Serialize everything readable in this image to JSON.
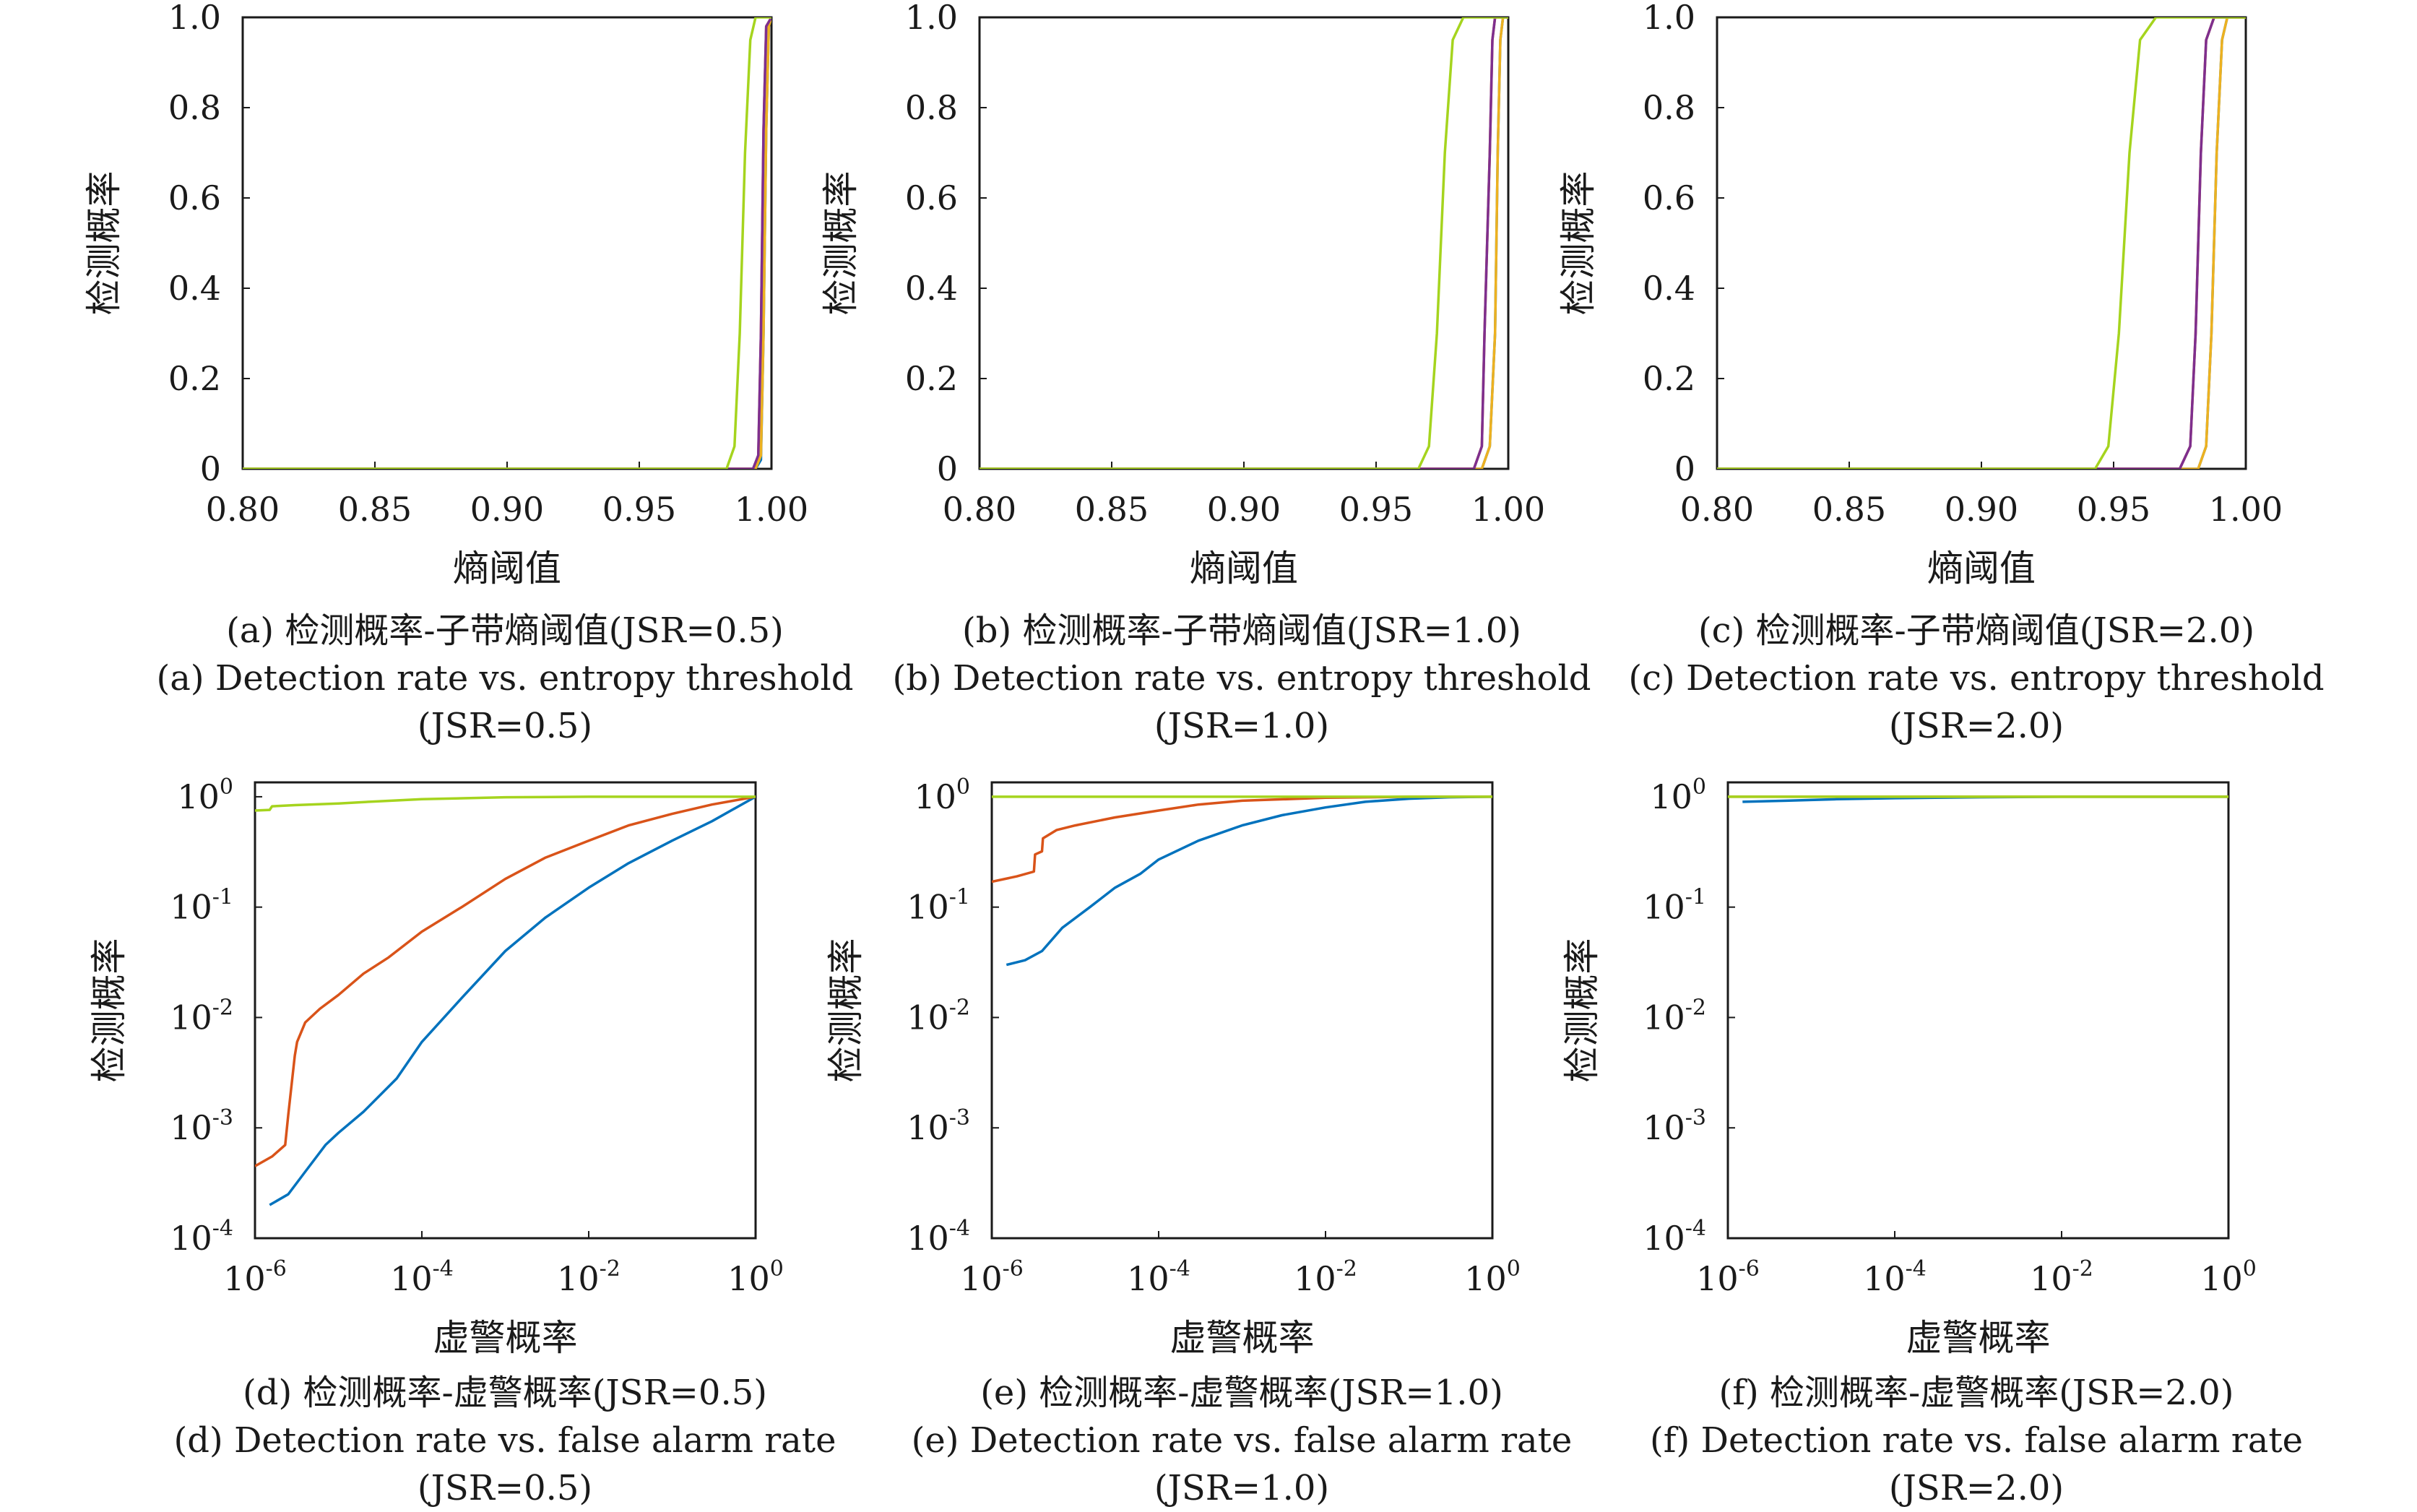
{
  "colors": {
    "series_1": "#0072bd",
    "series_2": "#d95319",
    "series_3": "#edb120",
    "series_4": "#7e2f8e",
    "series_5": "#a5d41e"
  },
  "panels": [
    {
      "caption_cn": "(a) 检测概率-子带熵阈值(JSR=0.5)",
      "caption_en": "(a) Detection rate vs. entropy threshold",
      "caption_jsr": "(JSR=0.5)"
    },
    {
      "caption_cn": "(b) 检测概率-子带熵阈值(JSR=1.0)",
      "caption_en": "(b) Detection rate vs. entropy threshold",
      "caption_jsr": "(JSR=1.0)"
    },
    {
      "caption_cn": "(c) 检测概率-子带熵阈值(JSR=2.0)",
      "caption_en": "(c) Detection rate vs. entropy threshold",
      "caption_jsr": "(JSR=2.0)"
    },
    {
      "caption_cn": "(d) 检测概率-虚警概率(JSR=0.5)",
      "caption_en": "(d) Detection rate vs. false alarm rate",
      "caption_jsr": "(JSR=0.5)"
    },
    {
      "caption_cn": "(e) 检测概率-虚警概率(JSR=1.0)",
      "caption_en": "(e) Detection rate vs. false alarm rate",
      "caption_jsr": "(JSR=1.0)"
    },
    {
      "caption_cn": "(f) 检测概率-虚警概率(JSR=2.0)",
      "caption_en": "(f) Detection rate vs. false alarm rate",
      "caption_jsr": "(JSR=2.0)"
    }
  ],
  "chart_data": [
    {
      "type": "line",
      "xlabel": "熵阈值",
      "ylabel": "检测概率",
      "xlim": [
        0.8,
        1.0
      ],
      "ylim": [
        0,
        1
      ],
      "xticks": [
        "0.80",
        "0.85",
        "0.90",
        "0.95",
        "1.00"
      ],
      "yticks": [
        "0",
        "0.2",
        "0.4",
        "0.6",
        "0.8",
        "1.0"
      ],
      "series": [
        {
          "color": "series_1",
          "x": [
            0.8,
            0.994,
            0.996,
            0.997,
            0.998,
            0.999,
            1.0
          ],
          "y": [
            0,
            0,
            0.02,
            0.3,
            0.75,
            0.98,
            1.0
          ]
        },
        {
          "color": "series_2",
          "x": [
            0.8,
            0.993,
            0.995,
            0.996,
            0.997,
            0.998,
            1.0
          ],
          "y": [
            0,
            0,
            0.02,
            0.3,
            0.75,
            0.98,
            1.0
          ]
        },
        {
          "color": "series_3",
          "x": [
            0.8,
            0.994,
            0.996,
            0.997,
            0.998,
            0.999,
            1.0
          ],
          "y": [
            0,
            0,
            0.03,
            0.3,
            0.75,
            0.98,
            1.0
          ]
        },
        {
          "color": "series_4",
          "x": [
            0.8,
            0.993,
            0.995,
            0.996,
            0.997,
            0.998,
            1.0
          ],
          "y": [
            0,
            0,
            0.03,
            0.3,
            0.75,
            0.98,
            1.0
          ]
        },
        {
          "color": "series_5",
          "x": [
            0.8,
            0.983,
            0.986,
            0.988,
            0.99,
            0.992,
            0.994,
            1.0
          ],
          "y": [
            0,
            0,
            0.05,
            0.3,
            0.7,
            0.95,
            1.0,
            1.0
          ]
        }
      ]
    },
    {
      "type": "line",
      "xlabel": "熵阈值",
      "ylabel": "检测概率",
      "xlim": [
        0.8,
        1.0
      ],
      "ylim": [
        0,
        1
      ],
      "xticks": [
        "0.80",
        "0.85",
        "0.90",
        "0.95",
        "1.00"
      ],
      "yticks": [
        "0",
        "0.2",
        "0.4",
        "0.6",
        "0.8",
        "1.0"
      ],
      "series": [
        {
          "color": "series_1",
          "x": [
            0.8,
            0.99,
            0.993,
            0.995,
            0.996,
            0.997,
            0.998,
            1.0
          ],
          "y": [
            0,
            0,
            0.05,
            0.3,
            0.7,
            0.95,
            1.0,
            1.0
          ]
        },
        {
          "color": "series_2",
          "x": [
            0.8,
            0.987,
            0.99,
            0.991,
            0.993,
            0.994,
            0.995,
            1.0
          ],
          "y": [
            0,
            0,
            0.05,
            0.3,
            0.7,
            0.95,
            1.0,
            1.0
          ]
        },
        {
          "color": "series_3",
          "x": [
            0.8,
            0.99,
            0.993,
            0.995,
            0.996,
            0.997,
            0.998,
            1.0
          ],
          "y": [
            0,
            0,
            0.05,
            0.3,
            0.7,
            0.95,
            1.0,
            1.0
          ]
        },
        {
          "color": "series_4",
          "x": [
            0.8,
            0.987,
            0.99,
            0.991,
            0.993,
            0.994,
            0.995,
            1.0
          ],
          "y": [
            0,
            0,
            0.05,
            0.3,
            0.7,
            0.95,
            1.0,
            1.0
          ]
        },
        {
          "color": "series_5",
          "x": [
            0.8,
            0.966,
            0.97,
            0.973,
            0.976,
            0.979,
            0.983,
            1.0
          ],
          "y": [
            0,
            0,
            0.05,
            0.3,
            0.7,
            0.95,
            1.0,
            1.0
          ]
        }
      ]
    },
    {
      "type": "line",
      "xlabel": "熵阈值",
      "ylabel": "检测概率",
      "xlim": [
        0.8,
        1.0
      ],
      "ylim": [
        0,
        1
      ],
      "xticks": [
        "0.80",
        "0.85",
        "0.90",
        "0.95",
        "1.00"
      ],
      "yticks": [
        "0",
        "0.2",
        "0.4",
        "0.6",
        "0.8",
        "1.0"
      ],
      "series": [
        {
          "color": "series_1",
          "x": [
            0.8,
            0.982,
            0.985,
            0.987,
            0.989,
            0.991,
            0.993,
            1.0
          ],
          "y": [
            0,
            0,
            0.05,
            0.3,
            0.7,
            0.95,
            1.0,
            1.0
          ]
        },
        {
          "color": "series_2",
          "x": [
            0.8,
            0.975,
            0.979,
            0.981,
            0.983,
            0.985,
            0.988,
            1.0
          ],
          "y": [
            0,
            0,
            0.05,
            0.3,
            0.7,
            0.95,
            1.0,
            1.0
          ]
        },
        {
          "color": "series_3",
          "x": [
            0.8,
            0.982,
            0.985,
            0.987,
            0.989,
            0.991,
            0.993,
            1.0
          ],
          "y": [
            0,
            0,
            0.05,
            0.3,
            0.7,
            0.95,
            1.0,
            1.0
          ]
        },
        {
          "color": "series_4",
          "x": [
            0.8,
            0.975,
            0.979,
            0.981,
            0.983,
            0.985,
            0.988,
            1.0
          ],
          "y": [
            0,
            0,
            0.05,
            0.3,
            0.7,
            0.95,
            1.0,
            1.0
          ]
        },
        {
          "color": "series_5",
          "x": [
            0.8,
            0.943,
            0.948,
            0.952,
            0.956,
            0.96,
            0.966,
            1.0
          ],
          "y": [
            0,
            0,
            0.05,
            0.3,
            0.7,
            0.95,
            1.0,
            1.0
          ]
        }
      ]
    },
    {
      "type": "line",
      "xscale": "log",
      "yscale": "log",
      "xlabel": "虚警概率",
      "ylabel": "检测概率",
      "xlim": [
        1e-06,
        1
      ],
      "ylim": [
        0.0001,
        1.35
      ],
      "xtick_values": [
        1e-06,
        0.0001,
        0.01,
        1
      ],
      "xticks": [
        {
          "base": "10",
          "exp": "-6"
        },
        {
          "base": "10",
          "exp": "-4"
        },
        {
          "base": "10",
          "exp": "-2"
        },
        {
          "base": "10",
          "exp": "0"
        }
      ],
      "ytick_values": [
        0.0001,
        0.001,
        0.01,
        0.1,
        1
      ],
      "yticks": [
        {
          "base": "10",
          "exp": "-4"
        },
        {
          "base": "10",
          "exp": "-3"
        },
        {
          "base": "10",
          "exp": "-2"
        },
        {
          "base": "10",
          "exp": "-1"
        },
        {
          "base": "10",
          "exp": "0"
        }
      ],
      "series": [
        {
          "color": "series_1",
          "x": [
            1.5e-06,
            2.5e-06,
            4e-06,
            7e-06,
            1e-05,
            2e-05,
            5e-05,
            0.0001,
            0.0003,
            0.001,
            0.003,
            0.01,
            0.03,
            0.1,
            0.3,
            1
          ],
          "y": [
            0.0002,
            0.00025,
            0.0004,
            0.0007,
            0.0009,
            0.0014,
            0.0028,
            0.006,
            0.015,
            0.04,
            0.08,
            0.15,
            0.25,
            0.4,
            0.6,
            1.0
          ]
        },
        {
          "color": "series_2",
          "x": [
            1e-06,
            1.6e-06,
            2.3e-06,
            2.5e-06,
            3e-06,
            3.2e-06,
            4e-06,
            6e-06,
            1e-05,
            2e-05,
            4e-05,
            0.0001,
            0.0003,
            0.001,
            0.003,
            0.01,
            0.03,
            0.1,
            0.3,
            1
          ],
          "y": [
            0.00045,
            0.00055,
            0.0007,
            0.0013,
            0.0045,
            0.006,
            0.009,
            0.012,
            0.016,
            0.025,
            0.035,
            0.06,
            0.1,
            0.18,
            0.28,
            0.4,
            0.55,
            0.7,
            0.85,
            1.0
          ]
        },
        {
          "color": "series_5",
          "x": [
            1e-06,
            1.5e-06,
            1.6e-06,
            3e-06,
            1e-05,
            3e-05,
            0.0001,
            0.001,
            0.01,
            0.1,
            1
          ],
          "y": [
            0.75,
            0.76,
            0.82,
            0.84,
            0.87,
            0.91,
            0.95,
            0.99,
            1.0,
            1.0,
            1.0
          ]
        }
      ]
    },
    {
      "type": "line",
      "xscale": "log",
      "yscale": "log",
      "xlabel": "虚警概率",
      "ylabel": "检测概率",
      "xlim": [
        1e-06,
        1
      ],
      "ylim": [
        0.0001,
        1.35
      ],
      "xtick_values": [
        1e-06,
        0.0001,
        0.01,
        1
      ],
      "xticks": [
        {
          "base": "10",
          "exp": "-6"
        },
        {
          "base": "10",
          "exp": "-4"
        },
        {
          "base": "10",
          "exp": "-2"
        },
        {
          "base": "10",
          "exp": "0"
        }
      ],
      "ytick_values": [
        0.0001,
        0.001,
        0.01,
        0.1,
        1
      ],
      "yticks": [
        {
          "base": "10",
          "exp": "-4"
        },
        {
          "base": "10",
          "exp": "-3"
        },
        {
          "base": "10",
          "exp": "-2"
        },
        {
          "base": "10",
          "exp": "-1"
        },
        {
          "base": "10",
          "exp": "0"
        }
      ],
      "series": [
        {
          "color": "series_1",
          "x": [
            1.5e-06,
            2.5e-06,
            4e-06,
            7e-06,
            1.5e-05,
            3e-05,
            6e-05,
            0.0001,
            0.0003,
            0.001,
            0.003,
            0.01,
            0.03,
            0.1,
            0.3,
            1
          ],
          "y": [
            0.03,
            0.033,
            0.04,
            0.065,
            0.1,
            0.15,
            0.2,
            0.27,
            0.4,
            0.55,
            0.68,
            0.8,
            0.9,
            0.96,
            0.99,
            1.0
          ]
        },
        {
          "color": "series_2",
          "x": [
            1e-06,
            2e-06,
            3.2e-06,
            3.3e-06,
            4e-06,
            4.1e-06,
            6e-06,
            1e-05,
            3e-05,
            0.0001,
            0.0003,
            0.001,
            0.01,
            0.1,
            1
          ],
          "y": [
            0.17,
            0.19,
            0.21,
            0.3,
            0.32,
            0.42,
            0.5,
            0.55,
            0.65,
            0.75,
            0.85,
            0.92,
            0.98,
            1.0,
            1.0
          ]
        },
        {
          "color": "series_5",
          "x": [
            1e-06,
            0.0001,
            0.01,
            1
          ],
          "y": [
            1.0,
            1.0,
            1.0,
            1.0
          ]
        }
      ]
    },
    {
      "type": "line",
      "xscale": "log",
      "yscale": "log",
      "xlabel": "虚警概率",
      "ylabel": "检测概率",
      "xlim": [
        1e-06,
        1
      ],
      "ylim": [
        0.0001,
        1.35
      ],
      "xtick_values": [
        1e-06,
        0.0001,
        0.01,
        1
      ],
      "xticks": [
        {
          "base": "10",
          "exp": "-6"
        },
        {
          "base": "10",
          "exp": "-4"
        },
        {
          "base": "10",
          "exp": "-2"
        },
        {
          "base": "10",
          "exp": "0"
        }
      ],
      "ytick_values": [
        0.0001,
        0.001,
        0.01,
        0.1,
        1
      ],
      "yticks": [
        {
          "base": "10",
          "exp": "-4"
        },
        {
          "base": "10",
          "exp": "-3"
        },
        {
          "base": "10",
          "exp": "-2"
        },
        {
          "base": "10",
          "exp": "-1"
        },
        {
          "base": "10",
          "exp": "0"
        }
      ],
      "series": [
        {
          "color": "series_1",
          "x": [
            1.5e-06,
            5e-06,
            2e-05,
            0.0001,
            0.001,
            0.01,
            0.1,
            1
          ],
          "y": [
            0.9,
            0.92,
            0.95,
            0.97,
            0.99,
            1.0,
            1.0,
            1.0
          ]
        },
        {
          "color": "series_2",
          "x": [
            1e-06,
            0.0001,
            0.01,
            1
          ],
          "y": [
            1.0,
            1.0,
            1.0,
            1.0
          ]
        },
        {
          "color": "series_5",
          "x": [
            1e-06,
            0.0001,
            0.01,
            1
          ],
          "y": [
            1.0,
            1.0,
            1.0,
            1.0
          ]
        }
      ]
    }
  ]
}
